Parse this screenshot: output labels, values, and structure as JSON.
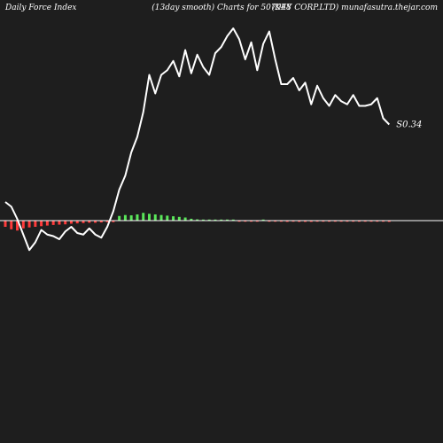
{
  "header": {
    "left": "Daily Force  Index",
    "center": "(13day smooth) Charts for 507948",
    "right": "(KEY CORP.LTD) munafasutra.thejar.com"
  },
  "colors": {
    "background": "#1e1e1e",
    "line": "#ffffff",
    "zero_line": "#ffffff",
    "positive_bar": "#59e659",
    "negative_bar": "#ff3b3b"
  },
  "chart_data": {
    "type": "line",
    "title": "",
    "xlabel": "",
    "ylabel": "",
    "grid": false,
    "last_value_label": "S0.34",
    "series": [
      {
        "values": [
          0.6,
          0.45,
          0.05,
          -0.45,
          -0.95,
          -0.7,
          -0.3,
          -0.45,
          -0.5,
          -0.6,
          -0.35,
          -0.2,
          -0.4,
          -0.45,
          -0.25,
          -0.45,
          -0.55,
          -0.2,
          0.3,
          1.0,
          1.45,
          2.2,
          2.7,
          3.5,
          4.7,
          4.1,
          4.7,
          4.85,
          5.15,
          4.65,
          5.5,
          4.75,
          5.35,
          4.95,
          4.7,
          5.4,
          5.6,
          5.95,
          6.2,
          5.85,
          5.2,
          5.75,
          4.85,
          5.7,
          6.1,
          5.2,
          4.4,
          4.4,
          4.6,
          4.2,
          4.45,
          3.75,
          4.35,
          3.95,
          3.7,
          4.05,
          3.85,
          3.75,
          4.05,
          3.7,
          3.7,
          3.75,
          3.95,
          3.3,
          3.1
        ]
      },
      {
        "values": [
          -0.2,
          -0.28,
          -0.32,
          -0.25,
          -0.22,
          -0.2,
          -0.18,
          -0.16,
          -0.14,
          -0.13,
          -0.12,
          -0.1,
          -0.09,
          -0.08,
          -0.07,
          -0.07,
          -0.06,
          -0.05,
          -0.05,
          0.15,
          0.18,
          0.17,
          0.2,
          0.25,
          0.22,
          0.2,
          0.18,
          0.16,
          0.14,
          0.12,
          0.1,
          0.06,
          0.04,
          0.03,
          0.03,
          0.02,
          0.03,
          0.03,
          0.03,
          -0.02,
          -0.02,
          -0.03,
          -0.03,
          0.02,
          -0.02,
          -0.03,
          -0.03,
          -0.04,
          -0.03,
          -0.04,
          -0.04,
          -0.04,
          -0.03,
          -0.03,
          -0.03,
          -0.03,
          -0.02,
          -0.02,
          -0.02,
          -0.02,
          -0.02,
          -0.02,
          -0.03,
          -0.03,
          -0.04
        ]
      }
    ]
  }
}
